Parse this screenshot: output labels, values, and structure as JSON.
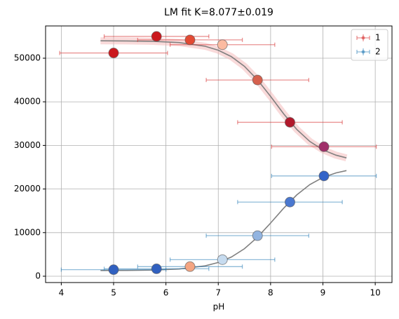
{
  "chart_data": {
    "type": "scatter",
    "title": "LM fit K=8.077±0.019",
    "xlabel": "pH",
    "xlim": [
      3.7,
      10.32
    ],
    "xticks": [
      4,
      5,
      6,
      7,
      8,
      9,
      10
    ],
    "ylim": [
      -1450,
      57400
    ],
    "yticks": [
      0,
      10000,
      20000,
      30000,
      40000,
      50000
    ],
    "grid": true,
    "legend": "upper right",
    "series": [
      {
        "name": "1",
        "color": "#d62728",
        "x": [
          5,
          5.82,
          6.46,
          7.08,
          7.75,
          8.37,
          9.02
        ],
        "values": [
          51200,
          55000,
          54200,
          53100,
          45000,
          35300,
          29700
        ],
        "xerr": [
          1.03,
          1.0,
          1.0,
          1.0,
          0.98,
          1.0,
          1.0
        ],
        "point_colors": [
          "#cb181d",
          "#cb181d",
          "#e34a33",
          "#fcbba1",
          "#d6604d",
          "#b2182b",
          "#a0306a"
        ]
      },
      {
        "name": "2",
        "color": "#1f77b4",
        "x": [
          5,
          5.82,
          6.46,
          7.08,
          7.75,
          8.37,
          9.02
        ],
        "values": [
          1500,
          1700,
          2200,
          3800,
          9300,
          17000,
          23000
        ],
        "xerr": [
          1.0,
          1.0,
          1.0,
          1.0,
          0.98,
          1.0,
          1.0
        ],
        "point_colors": [
          "#3060c0",
          "#3060c0",
          "#f4a582",
          "#c6dbef",
          "#92b4e0",
          "#4a78d0",
          "#3464c8"
        ]
      }
    ],
    "fit_curves": [
      {
        "color": "#808080",
        "band_color": "#f4b6b6",
        "x": [
          4.75,
          5.25,
          5.75,
          6.25,
          6.75,
          7.0,
          7.25,
          7.5,
          7.75,
          8.0,
          8.25,
          8.5,
          8.75,
          9.0,
          9.25,
          9.45
        ],
        "values": [
          53990,
          53958,
          53869,
          53589,
          52738,
          51837,
          50369,
          48134,
          45035,
          41234,
          37245,
          33671,
          30903,
          28985,
          27761,
          27138
        ]
      },
      {
        "color": "#808080",
        "x": [
          4.75,
          5.25,
          5.75,
          6.25,
          6.75,
          7.0,
          7.25,
          7.5,
          7.75,
          8.0,
          8.25,
          8.5,
          8.75,
          9.0,
          9.25,
          9.45
        ],
        "values": [
          1311,
          1336,
          1412,
          1652,
          2377,
          3147,
          4400,
          6304,
          8953,
          12194,
          15604,
          18644,
          21020,
          22658,
          23696,
          24230
        ]
      }
    ]
  }
}
